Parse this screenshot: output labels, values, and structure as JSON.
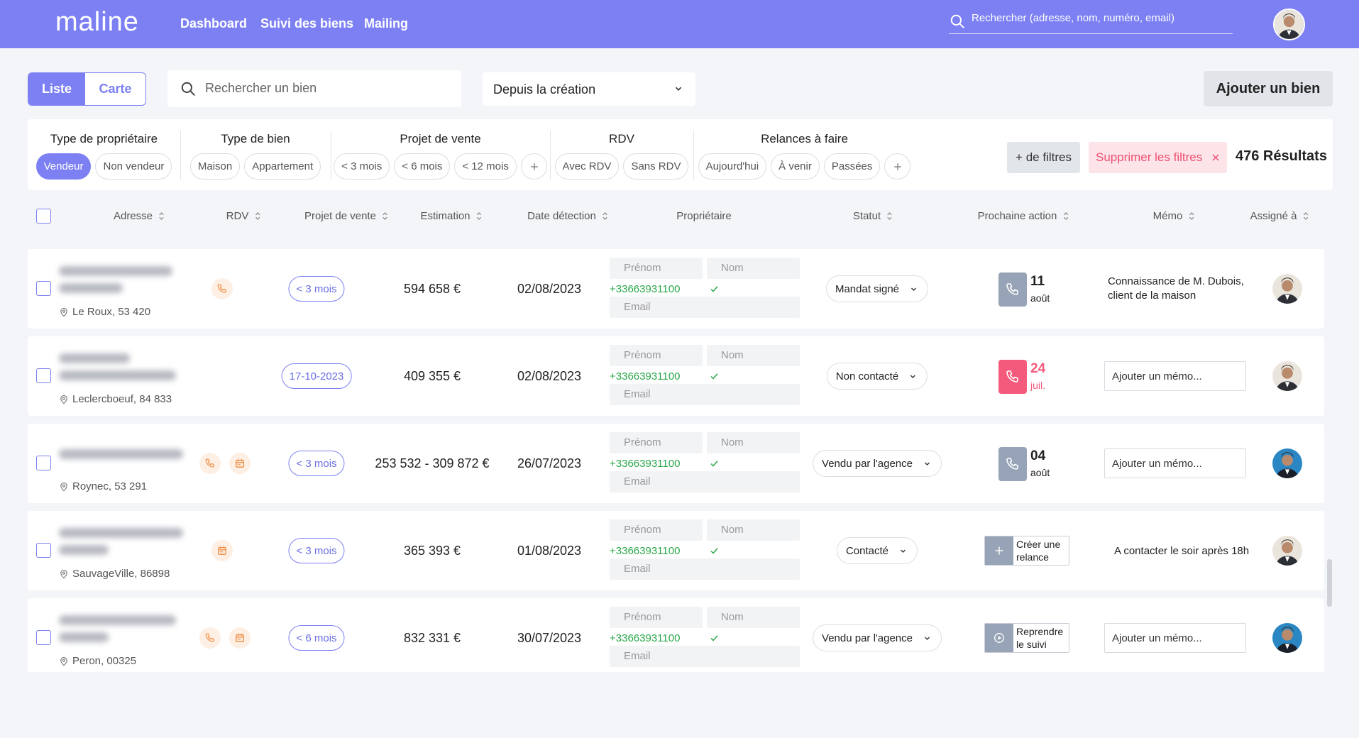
{
  "header": {
    "logo": "maline",
    "nav": [
      "Dashboard",
      "Suivi des biens",
      "Mailing"
    ],
    "search_placeholder": "Rechercher (adresse, nom, numéro, email)"
  },
  "toolbar": {
    "view_toggle": [
      "Liste",
      "Carte"
    ],
    "search_placeholder": "Rechercher un bien",
    "period": "Depuis la création",
    "add_button": "Ajouter un bien"
  },
  "filters": {
    "groups": [
      {
        "title": "Type de propriétaire",
        "options": [
          "Vendeur",
          "Non vendeur"
        ]
      },
      {
        "title": "Type de bien",
        "options": [
          "Maison",
          "Appartement"
        ]
      },
      {
        "title": "Projet de vente",
        "options": [
          "< 3 mois",
          "< 6 mois",
          "< 12 mois"
        ]
      },
      {
        "title": "RDV",
        "options": [
          "Avec RDV",
          "Sans RDV"
        ]
      },
      {
        "title": "Relances à faire",
        "options": [
          "Aujourd'hui",
          "À venir",
          "Passées"
        ]
      }
    ],
    "more_filters": "+ de filtres",
    "clear_filters": "Supprimer les filtres",
    "results": "476 Résultats"
  },
  "table": {
    "columns": [
      "Adresse",
      "RDV",
      "Projet de vente",
      "Estimation",
      "Date détection",
      "Propriétaire",
      "Statut",
      "Prochaine action",
      "Mémo",
      "Assigné à"
    ],
    "owner_placeholders": {
      "first_name": "Prénom",
      "last_name": "Nom",
      "email": "Email"
    },
    "memo_placeholder": "Ajouter un mémo...",
    "rows": [
      {
        "address": "Le Roux, 53 420",
        "project": "< 3 mois",
        "estimation": "594 658 €",
        "date": "02/08/2023",
        "phone": "+33663931100",
        "status": "Mandat signé",
        "next_action": {
          "day": "11",
          "month": "août"
        },
        "memo": "Connaissance de M. Dubois, client de la maison"
      },
      {
        "address": "Leclercboeuf, 84 833",
        "project": "17-10-2023",
        "estimation": "409 355 €",
        "date": "02/08/2023",
        "phone": "+33663931100",
        "status": "Non contacté",
        "next_action": {
          "day": "24",
          "month": "juil."
        },
        "memo": null
      },
      {
        "address": "Roynec, 53 291",
        "project": "< 3 mois",
        "estimation": "253 532 - 309 872 €",
        "date": "26/07/2023",
        "phone": "+33663931100",
        "status": "Vendu par l'agence",
        "next_action": {
          "day": "04",
          "month": "août"
        },
        "memo": null
      },
      {
        "address": "SauvageVille, 86898",
        "project": "< 3 mois",
        "estimation": "365 393 €",
        "date": "01/08/2023",
        "phone": "+33663931100",
        "status": "Contacté",
        "next_action": {
          "label": "Créer une relance"
        },
        "memo": "A contacter le soir après 18h"
      },
      {
        "address": "Peron, 00325",
        "project": "< 6 mois",
        "estimation": "832 331 €",
        "date": "30/07/2023",
        "phone": "+33663931100",
        "status": "Vendu par l'agence",
        "next_action": {
          "label": "Reprendre le suivi"
        },
        "memo": null
      }
    ]
  }
}
